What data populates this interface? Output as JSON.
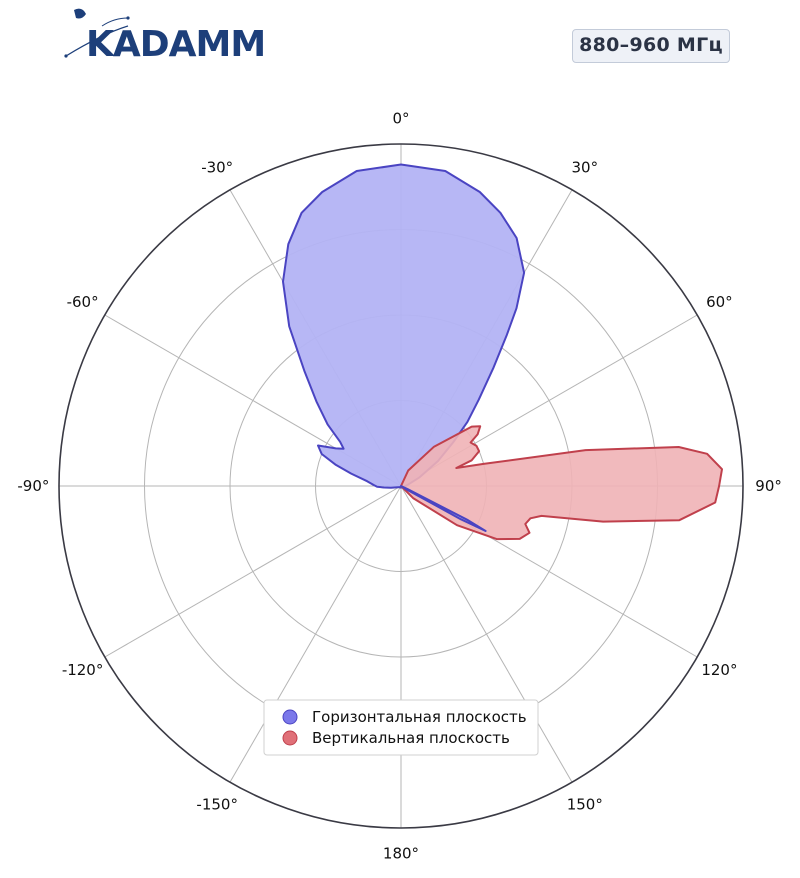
{
  "header": {
    "logo_text": "KADAMM",
    "band_label": "880–960 МГц"
  },
  "colors": {
    "horizontal_fill": "#b3b3f4",
    "horizontal_line": "#4a44c2",
    "vertical_fill": "#f0b3b6",
    "vertical_line": "#c0404c",
    "axis": "#3a3a44",
    "grid": "#b5b5b5",
    "logo_blue": "#1d3f7a"
  },
  "chart_data": {
    "type": "polar",
    "theta_direction": "clockwise",
    "theta_zero": "top",
    "angular_ticks": [
      "0°",
      "30°",
      "60°",
      "90°",
      "120°",
      "150°",
      "180°",
      "-150°",
      "-120°",
      "-90°",
      "-60°",
      "-30°"
    ],
    "angular_tick_values": [
      0,
      30,
      60,
      90,
      120,
      150,
      180,
      -150,
      -120,
      -90,
      -60,
      -30
    ],
    "r_grid": [
      0.25,
      0.5,
      0.75,
      1.0
    ],
    "r_max": 1.0,
    "grid": true,
    "legend_position": "bottom-center",
    "series": [
      {
        "name": "Горизонтальная плоскость",
        "color_key": "horizontal",
        "points": [
          [
            0,
            0.94
          ],
          [
            8,
            0.93
          ],
          [
            15,
            0.89
          ],
          [
            20,
            0.85
          ],
          [
            25,
            0.8
          ],
          [
            30,
            0.72
          ],
          [
            33,
            0.62
          ],
          [
            35,
            0.54
          ],
          [
            38,
            0.44
          ],
          [
            42,
            0.34
          ],
          [
            46,
            0.27
          ],
          [
            50,
            0.2
          ],
          [
            56,
            0.13
          ],
          [
            65,
            0.06
          ],
          [
            80,
            0.02
          ],
          [
            100,
            0.01
          ],
          [
            130,
            0.005
          ],
          [
            180,
            0.005
          ],
          [
            -130,
            0.005
          ],
          [
            -100,
            0.03
          ],
          [
            -95,
            0.05
          ],
          [
            -92,
            0.07
          ],
          [
            -88,
            0.08
          ],
          [
            -82,
            0.1
          ],
          [
            -76,
            0.15
          ],
          [
            -72,
            0.2
          ],
          [
            -68,
            0.25
          ],
          [
            -64,
            0.27
          ],
          [
            -60,
            0.22
          ],
          [
            -57,
            0.2
          ],
          [
            -54,
            0.22
          ],
          [
            -50,
            0.28
          ],
          [
            -45,
            0.35
          ],
          [
            -40,
            0.44
          ],
          [
            -35,
            0.57
          ],
          [
            -30,
            0.69
          ],
          [
            -25,
            0.78
          ],
          [
            -20,
            0.85
          ],
          [
            -15,
            0.89
          ],
          [
            -8,
            0.93
          ],
          [
            0,
            0.94
          ]
        ]
      },
      {
        "name": "Вертикальная плоскость",
        "color_key": "vertical",
        "points": [
          [
            0,
            0.0
          ],
          [
            25,
            0.05
          ],
          [
            40,
            0.15
          ],
          [
            50,
            0.27
          ],
          [
            53,
            0.29
          ],
          [
            56,
            0.27
          ],
          [
            58,
            0.24
          ],
          [
            62,
            0.25
          ],
          [
            66,
            0.25
          ],
          [
            70,
            0.22
          ],
          [
            72,
            0.17
          ],
          [
            75,
            0.25
          ],
          [
            79,
            0.55
          ],
          [
            82,
            0.82
          ],
          [
            84,
            0.9
          ],
          [
            87,
            0.94
          ],
          [
            90,
            0.93
          ],
          [
            93,
            0.92
          ],
          [
            97,
            0.82
          ],
          [
            100,
            0.6
          ],
          [
            102,
            0.42
          ],
          [
            104,
            0.39
          ],
          [
            107,
            0.38
          ],
          [
            110,
            0.4
          ],
          [
            114,
            0.38
          ],
          [
            119,
            0.32
          ],
          [
            125,
            0.2
          ],
          [
            135,
            0.05
          ],
          [
            180,
            0.0
          ]
        ]
      },
      {
        "name": "",
        "color_key": "horizontal",
        "points": [
          [
            0,
            0.0
          ],
          [
            115,
            0.02
          ],
          [
            117,
            0.22
          ],
          [
            118,
            0.28
          ],
          [
            119,
            0.2
          ],
          [
            122,
            0.02
          ],
          [
            180,
            0.0
          ]
        ]
      }
    ]
  },
  "legend": {
    "items": [
      {
        "label": "Горизонтальная плоскость",
        "color_key": "horizontal"
      },
      {
        "label": "Вертикальная плоскость",
        "color_key": "vertical"
      }
    ]
  }
}
